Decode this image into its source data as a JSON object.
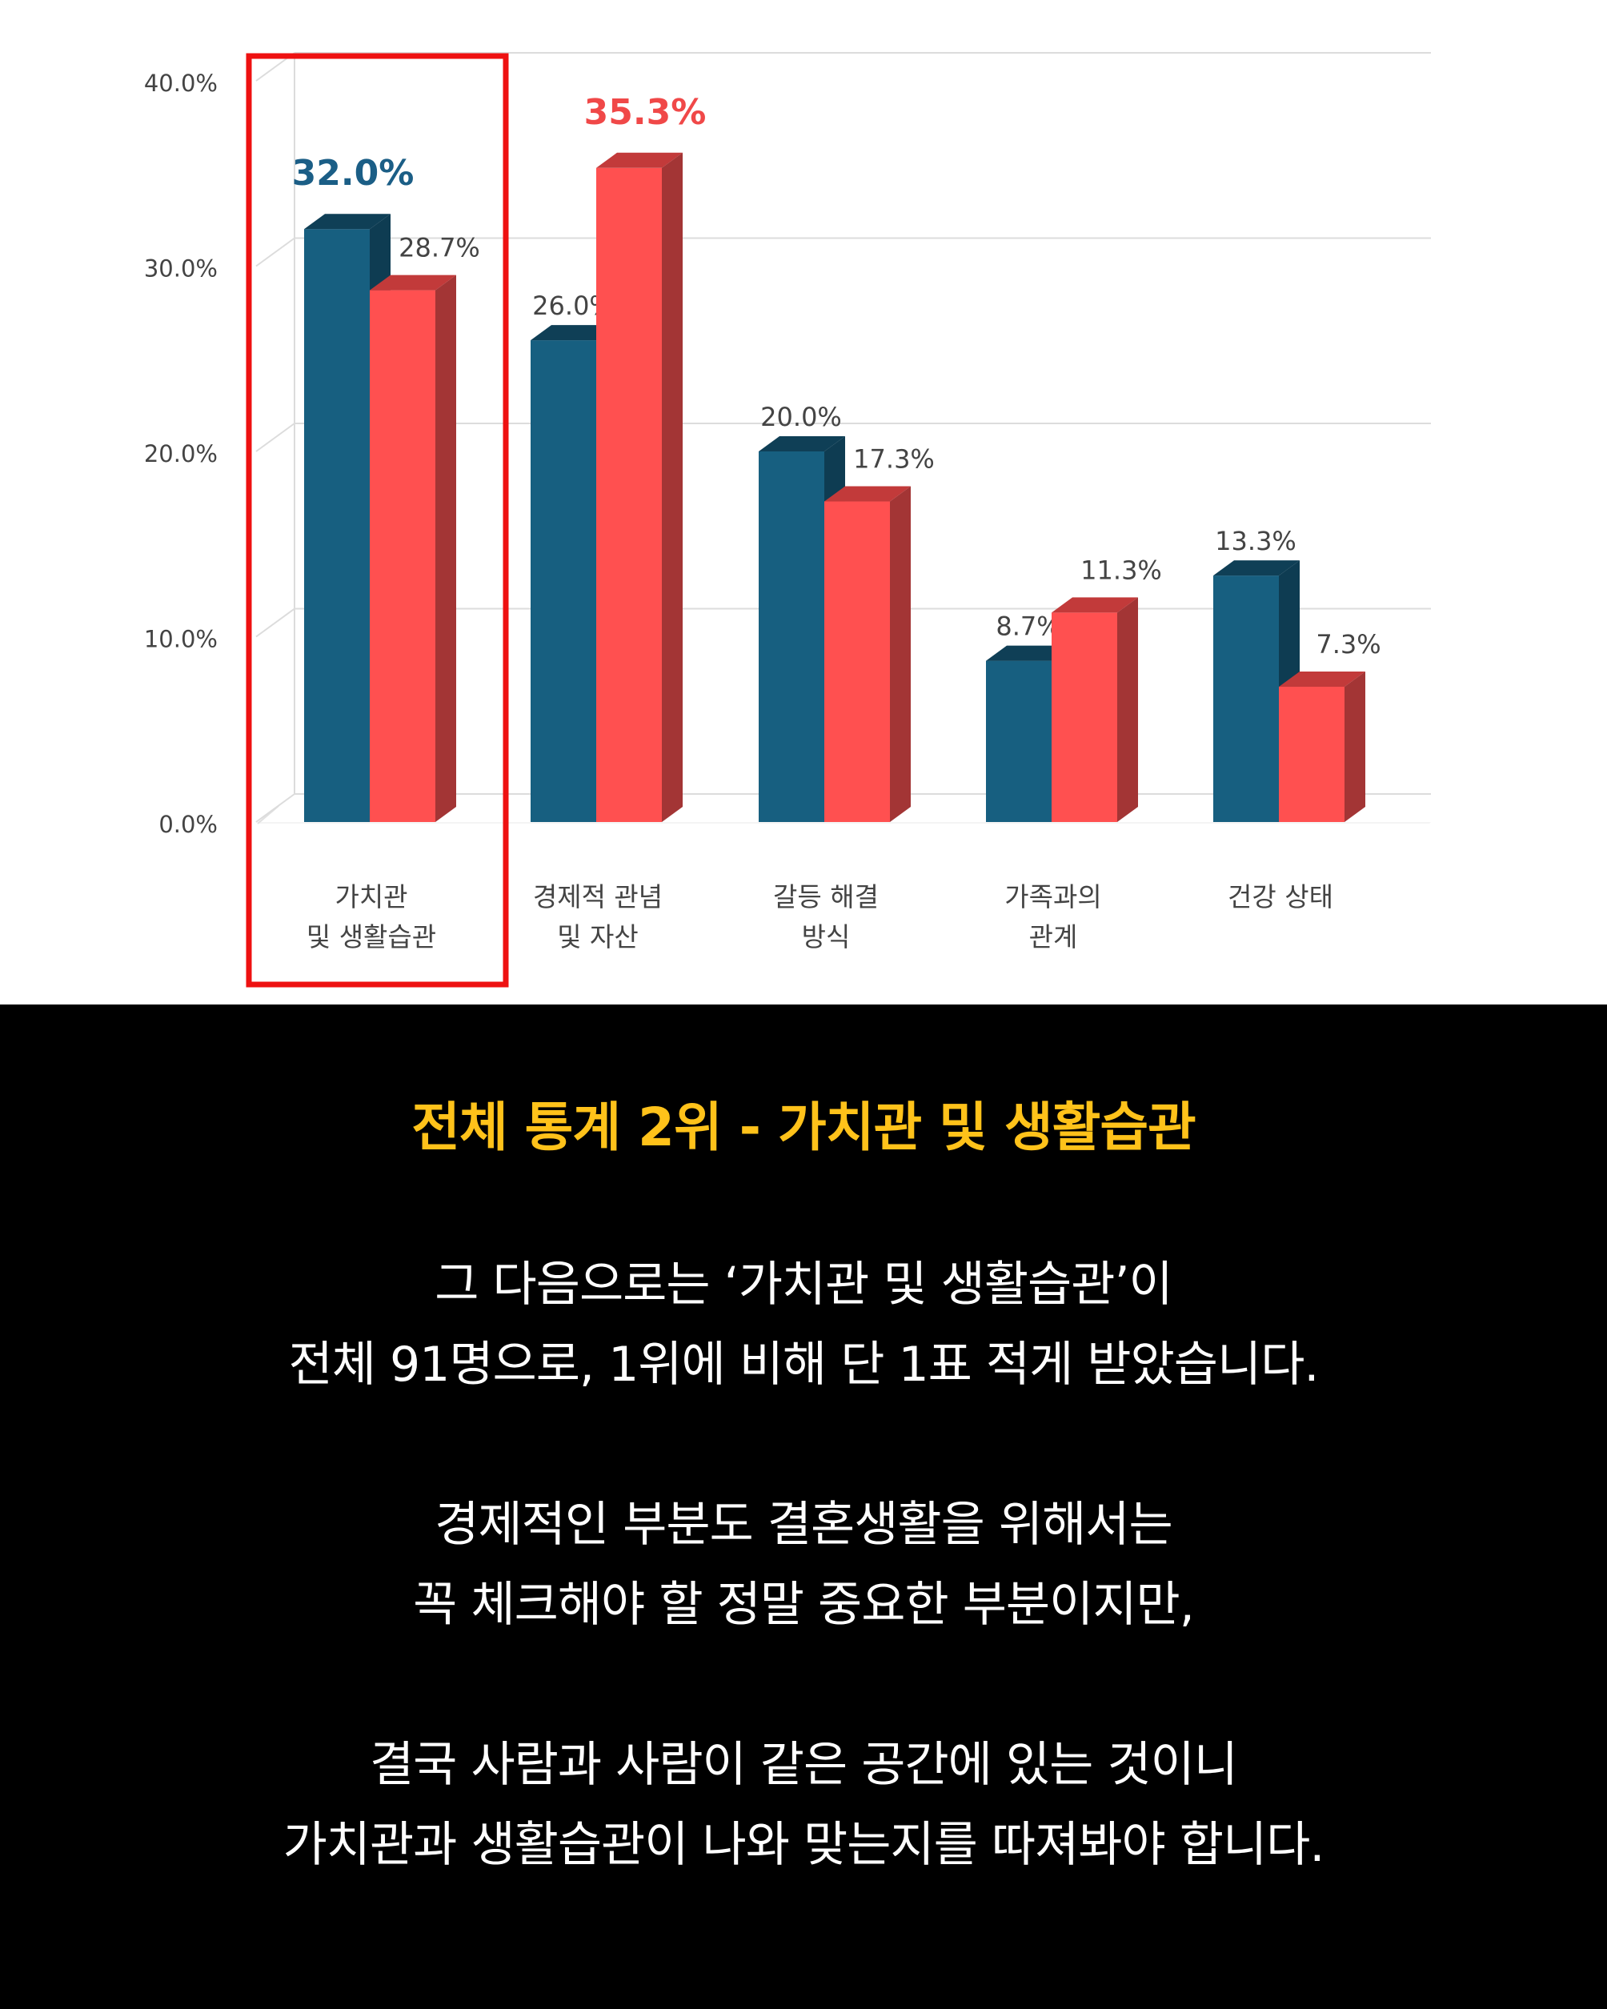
{
  "chart_data": {
    "type": "bar",
    "categories": [
      [
        "가치관",
        "및 생활습관"
      ],
      [
        "경제적 관념",
        "및 자산"
      ],
      [
        "갈등 해결",
        "방식"
      ],
      [
        "가족과의",
        "관계"
      ],
      [
        "건강 상태"
      ]
    ],
    "series": [
      {
        "color": "#175f80",
        "top_color": "#0f3f56",
        "side_color": "#0e3c52",
        "values": [
          32.0,
          26.0,
          20.0,
          8.7,
          13.3
        ],
        "labels": [
          "32.0%",
          "26.0%",
          "20.0%",
          "8.7%",
          "13.3%"
        ]
      },
      {
        "color": "#ff5050",
        "top_color": "#c23a3a",
        "side_color": "#a33535",
        "values": [
          28.7,
          35.3,
          17.3,
          11.3,
          7.3
        ],
        "labels": [
          "28.7%",
          "35.3%",
          "17.3%",
          "11.3%",
          "7.3%"
        ]
      }
    ],
    "emphasized": [
      {
        "series": 0,
        "index": 0,
        "color": "#1b5e86"
      },
      {
        "series": 1,
        "index": 1,
        "color": "#f04848"
      }
    ],
    "highlight_category": 0,
    "highlight_color": "#ee1111",
    "yticks": [
      "0.0%",
      "10.0%",
      "20.0%",
      "30.0%",
      "40.0%"
    ],
    "ylim": [
      0,
      40
    ],
    "grid": true,
    "legend": "none"
  },
  "text": {
    "headline": "전체 통계 2위 - 가치관 및 생활습관",
    "paragraphs": [
      [
        "그 다음으로는 ‘가치관 및 생활습관’이",
        "전체 91명으로, 1위에 비해 단 1표 적게 받았습니다."
      ],
      [
        "경제적인 부분도 결혼생활을 위해서는",
        "꼭 체크해야 할 정말 중요한 부분이지만,"
      ],
      [
        "결국 사람과 사람이 같은 공간에 있는 것이니",
        "가치관과 생활습관이 나와 맞는지를 따져봐야 합니다."
      ]
    ]
  }
}
